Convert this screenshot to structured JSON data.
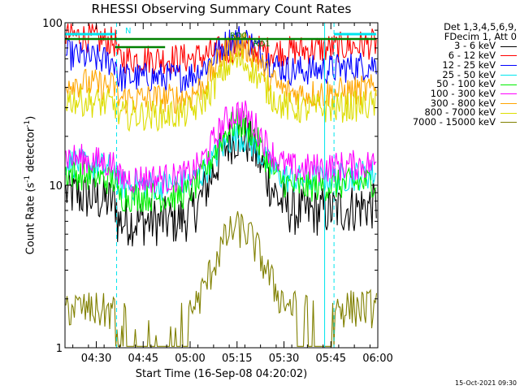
{
  "chart_data": {
    "type": "line",
    "title": "RHESSI Observing Summary Count Rates",
    "xlabel": "Start Time (16-Sep-08 04:20:02)",
    "ylabel_main": "Count Rate (s",
    "ylabel_sup": "-1",
    "ylabel_rest": " detector",
    "ylabel_sup2": "-1",
    "ylabel_end": ")",
    "y_scale": "log",
    "ylim": [
      1,
      100
    ],
    "x_unit": "minutes",
    "xlim": [
      260,
      360
    ],
    "xticks": [
      {
        "value": 270,
        "label": "04:30"
      },
      {
        "value": 285,
        "label": "04:45"
      },
      {
        "value": 300,
        "label": "05:00"
      },
      {
        "value": 315,
        "label": "05:15"
      },
      {
        "value": 330,
        "label": "05:30"
      },
      {
        "value": 345,
        "label": "05:45"
      },
      {
        "value": 360,
        "label": "06:00"
      }
    ],
    "yticks": [
      {
        "value": 1,
        "label": "1"
      },
      {
        "value": 10,
        "label": "10"
      },
      {
        "value": 100,
        "label": "100"
      }
    ],
    "legend_header": [
      "Det 1,3,4,5,6,9,",
      "FDecim 1, Att 0"
    ],
    "series": [
      {
        "name": "3 - 6 keV",
        "color": "#000000",
        "pre": 9,
        "min": 6,
        "peak": 20,
        "post": 7
      },
      {
        "name": "6 - 12 keV",
        "color": "#ff0000",
        "pre": 85,
        "min": 60,
        "peak": 70,
        "post": 70
      },
      {
        "name": "12 - 25 keV",
        "color": "#0000ff",
        "pre": 64,
        "min": 46,
        "peak": 80,
        "post": 52
      },
      {
        "name": "25 - 50 keV",
        "color": "#00e5ee",
        "pre": 14,
        "min": 10,
        "peak": 20,
        "post": 11
      },
      {
        "name": "50 - 100 keV",
        "color": "#00ee00",
        "pre": 12,
        "min": 8.5,
        "peak": 24,
        "post": 10
      },
      {
        "name": "100 - 300 keV",
        "color": "#ff00ff",
        "pre": 15,
        "min": 11,
        "peak": 28,
        "post": 13
      },
      {
        "name": "300 - 800 keV",
        "color": "#ffa500",
        "pre": 44,
        "min": 34,
        "peak": 73,
        "post": 37
      },
      {
        "name": "800 - 7000 keV",
        "color": "#dddd00",
        "pre": 34,
        "min": 27,
        "peak": 58,
        "post": 30
      },
      {
        "name": "7000 - 15000 keV",
        "color": "#808000",
        "pre": 1.8,
        "min": 1.5,
        "peak": 5.5,
        "post": 1.8
      }
    ],
    "flags": [
      {
        "label": "N",
        "color": "#00e5ee",
        "row": 1,
        "start": 260,
        "end": 276
      },
      {
        "label": "",
        "color": "#00e5ee",
        "row": 1,
        "start": 346,
        "end": 359.5
      },
      {
        "label": "RD0",
        "color": "#008000",
        "row": 2,
        "start": 260,
        "end": 359.5
      },
      {
        "label": "RD1",
        "color": "#008000",
        "row": 3,
        "start": 276,
        "end": 292
      }
    ],
    "saa_edges": [
      276.5,
      346
    ],
    "night_edges": [
      260,
      340
    ]
  },
  "footer": "15-Oct-2021 09:30"
}
